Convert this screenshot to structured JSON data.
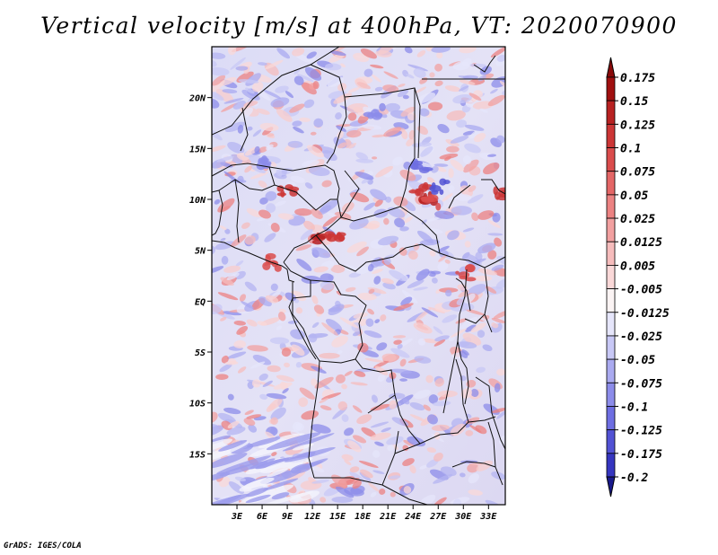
{
  "title": "Vertical velocity [m/s] at 400hPa, VT: 2020070900",
  "credit": "GrADS: IGES/COLA",
  "map": {
    "lon_range": [
      0,
      35
    ],
    "lat_range": [
      -20,
      25
    ],
    "lat_ticks": [
      {
        "value": 20,
        "label": "20N"
      },
      {
        "value": 15,
        "label": "15N"
      },
      {
        "value": 10,
        "label": "10N"
      },
      {
        "value": 5,
        "label": "5N"
      },
      {
        "value": 0,
        "label": "EQ"
      },
      {
        "value": -5,
        "label": "5S"
      },
      {
        "value": -10,
        "label": "10S"
      },
      {
        "value": -15,
        "label": "15S"
      }
    ],
    "lon_ticks": [
      {
        "value": 3,
        "label": "3E"
      },
      {
        "value": 6,
        "label": "6E"
      },
      {
        "value": 9,
        "label": "9E"
      },
      {
        "value": 12,
        "label": "12E"
      },
      {
        "value": 15,
        "label": "15E"
      },
      {
        "value": 18,
        "label": "18E"
      },
      {
        "value": 21,
        "label": "21E"
      },
      {
        "value": 24,
        "label": "24E"
      },
      {
        "value": 27,
        "label": "27E"
      },
      {
        "value": 30,
        "label": "30E"
      },
      {
        "value": 33,
        "label": "33E"
      }
    ]
  },
  "colorbar": {
    "levels": [
      {
        "label": "0.175",
        "color": "#a01010"
      },
      {
        "label": "0.15",
        "color": "#b82222"
      },
      {
        "label": "0.125",
        "color": "#cc3636"
      },
      {
        "label": "0.1",
        "color": "#da4c4c"
      },
      {
        "label": "0.075",
        "color": "#e46666"
      },
      {
        "label": "0.05",
        "color": "#ec8282"
      },
      {
        "label": "0.025",
        "color": "#f2a0a0"
      },
      {
        "label": "0.0125",
        "color": "#f6bcbc"
      },
      {
        "label": "0.005",
        "color": "#fad8d8"
      },
      {
        "label": "-0.005",
        "color": "#fbf4f4"
      },
      {
        "label": "-0.0125",
        "color": "#e6e6fb"
      },
      {
        "label": "-0.025",
        "color": "#c8c8f6"
      },
      {
        "label": "-0.05",
        "color": "#aaaaf0"
      },
      {
        "label": "-0.075",
        "color": "#8c8cea"
      },
      {
        "label": "-0.1",
        "color": "#6e6ee2"
      },
      {
        "label": "-0.125",
        "color": "#5252d4"
      },
      {
        "label": "-0.175",
        "color": "#3636c0"
      },
      {
        "label": "-0.2",
        "color": "#2020a8"
      }
    ],
    "top_triangle_color": "#8a0a0a",
    "bottom_triangle_color": "#1a1a8c"
  }
}
